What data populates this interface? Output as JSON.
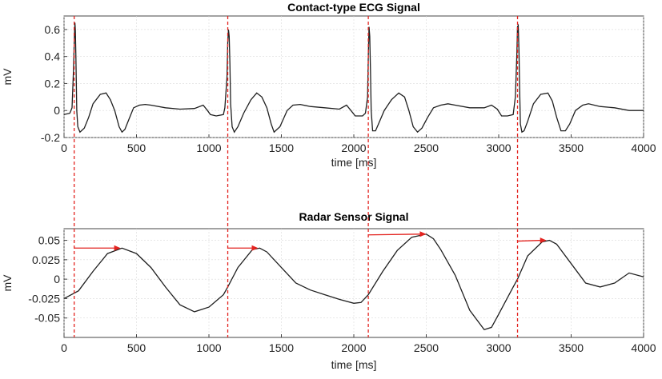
{
  "chart_data": [
    {
      "type": "line",
      "title": "Contact-type ECG Signal",
      "xlabel": "time [ms]",
      "ylabel": "mV",
      "xlim": [
        0,
        4000
      ],
      "ylim": [
        -0.2,
        0.7
      ],
      "xticks": [
        0,
        500,
        1000,
        1500,
        2000,
        2500,
        3000,
        3500,
        4000
      ],
      "yticks": [
        -0.2,
        0,
        0.2,
        0.4,
        0.6
      ],
      "ytick_labels": [
        "-0.2",
        "0",
        "0.2",
        "0.4",
        "0.6"
      ],
      "grid": true,
      "series": [
        {
          "x": [
            0,
            40,
            55,
            65,
            70,
            75,
            78,
            82,
            88,
            95,
            110,
            140,
            170,
            200,
            250,
            290,
            320,
            350,
            380,
            400,
            420,
            450,
            480,
            520,
            560,
            600,
            700,
            800,
            900,
            960,
            990,
            1010,
            1050,
            1100,
            1110,
            1125,
            1130,
            1135,
            1140,
            1145,
            1150,
            1160,
            1175,
            1200,
            1240,
            1290,
            1330,
            1365,
            1400,
            1430,
            1450,
            1490,
            1540,
            1580,
            1630,
            1700,
            1800,
            1900,
            1950,
            1980,
            2010,
            2060,
            2080,
            2095,
            2100,
            2105,
            2110,
            2115,
            2120,
            2130,
            2150,
            2170,
            2210,
            2260,
            2310,
            2350,
            2380,
            2410,
            2440,
            2470,
            2510,
            2550,
            2600,
            2650,
            2700,
            2800,
            2900,
            2950,
            2990,
            3020,
            3060,
            3100,
            3115,
            3125,
            3130,
            3135,
            3140,
            3145,
            3150,
            3160,
            3175,
            3200,
            3240,
            3290,
            3340,
            3370,
            3400,
            3430,
            3460,
            3490,
            3530,
            3580,
            3620,
            3700,
            3800,
            3900,
            4000
          ],
          "y": [
            -0.03,
            -0.02,
            0.02,
            0.3,
            0.5,
            0.65,
            0.6,
            0.4,
            0.0,
            -0.12,
            -0.16,
            -0.13,
            -0.05,
            0.05,
            0.12,
            0.13,
            0.08,
            0.0,
            -0.12,
            -0.16,
            -0.14,
            -0.06,
            0.02,
            0.04,
            0.045,
            0.04,
            0.02,
            0.01,
            0.015,
            0.04,
            0.0,
            -0.03,
            -0.04,
            -0.03,
            0.02,
            0.25,
            0.5,
            0.6,
            0.55,
            0.35,
            0.05,
            -0.12,
            -0.16,
            -0.12,
            -0.02,
            0.08,
            0.13,
            0.1,
            0.02,
            -0.1,
            -0.16,
            -0.12,
            0.0,
            0.04,
            0.045,
            0.03,
            0.02,
            0.01,
            0.04,
            0.0,
            -0.04,
            -0.04,
            -0.02,
            0.1,
            0.4,
            0.62,
            0.55,
            0.3,
            0.0,
            -0.15,
            -0.15,
            -0.1,
            0.0,
            0.08,
            0.13,
            0.1,
            0.0,
            -0.12,
            -0.16,
            -0.13,
            -0.05,
            0.02,
            0.04,
            0.05,
            0.04,
            0.02,
            0.02,
            0.04,
            0.01,
            -0.04,
            -0.04,
            -0.03,
            0.1,
            0.4,
            0.62,
            0.63,
            0.45,
            0.15,
            -0.1,
            -0.16,
            -0.15,
            -0.08,
            0.05,
            0.12,
            0.13,
            0.07,
            -0.05,
            -0.15,
            -0.15,
            -0.1,
            0.0,
            0.04,
            0.05,
            0.03,
            0.02,
            0.0,
            0.0
          ]
        }
      ]
    },
    {
      "type": "line",
      "title": "Radar Sensor Signal",
      "xlabel": "time [ms]",
      "ylabel": "mV",
      "xlim": [
        0,
        4000
      ],
      "ylim": [
        -0.075,
        0.065
      ],
      "xticks": [
        0,
        500,
        1000,
        1500,
        2000,
        2500,
        3000,
        3500,
        4000
      ],
      "yticks": [
        -0.05,
        -0.025,
        0,
        0.025,
        0.05
      ],
      "ytick_labels": [
        "-0.05",
        "-0.025",
        "0",
        "0.025",
        "0.05"
      ],
      "grid": true,
      "series": [
        {
          "x": [
            0,
            100,
            200,
            300,
            400,
            500,
            600,
            700,
            800,
            900,
            1000,
            1100,
            1130,
            1200,
            1300,
            1350,
            1400,
            1500,
            1600,
            1700,
            1800,
            1900,
            2000,
            2050,
            2100,
            2200,
            2300,
            2400,
            2500,
            2550,
            2600,
            2700,
            2800,
            2900,
            2950,
            3000,
            3100,
            3130,
            3200,
            3300,
            3350,
            3400,
            3500,
            3600,
            3700,
            3800,
            3900,
            4000
          ],
          "y": [
            -0.025,
            -0.015,
            0.01,
            0.033,
            0.04,
            0.033,
            0.015,
            -0.01,
            -0.033,
            -0.042,
            -0.036,
            -0.02,
            -0.01,
            0.015,
            0.038,
            0.04,
            0.035,
            0.015,
            -0.005,
            -0.014,
            -0.02,
            -0.026,
            -0.031,
            -0.03,
            -0.02,
            0.01,
            0.037,
            0.054,
            0.058,
            0.052,
            0.038,
            0.005,
            -0.04,
            -0.065,
            -0.062,
            -0.045,
            -0.01,
            0.0,
            0.03,
            0.048,
            0.05,
            0.045,
            0.02,
            -0.005,
            -0.01,
            -0.005,
            0.008,
            0.003
          ]
        }
      ],
      "arrows": [
        {
          "from": [
            70,
            0.04
          ],
          "to": [
            390,
            0.04
          ]
        },
        {
          "from": [
            1130,
            0.04
          ],
          "to": [
            1340,
            0.04
          ]
        },
        {
          "from": [
            2100,
            0.057
          ],
          "to": [
            2500,
            0.058
          ]
        },
        {
          "from": [
            3130,
            0.049
          ],
          "to": [
            3330,
            0.05
          ]
        }
      ]
    }
  ],
  "r_peaks_ms": [
    70,
    1130,
    2100,
    3130
  ],
  "colors": {
    "signal": "#1f1f1f",
    "marker": "#e3231f",
    "grid": "#d9d9d9"
  }
}
